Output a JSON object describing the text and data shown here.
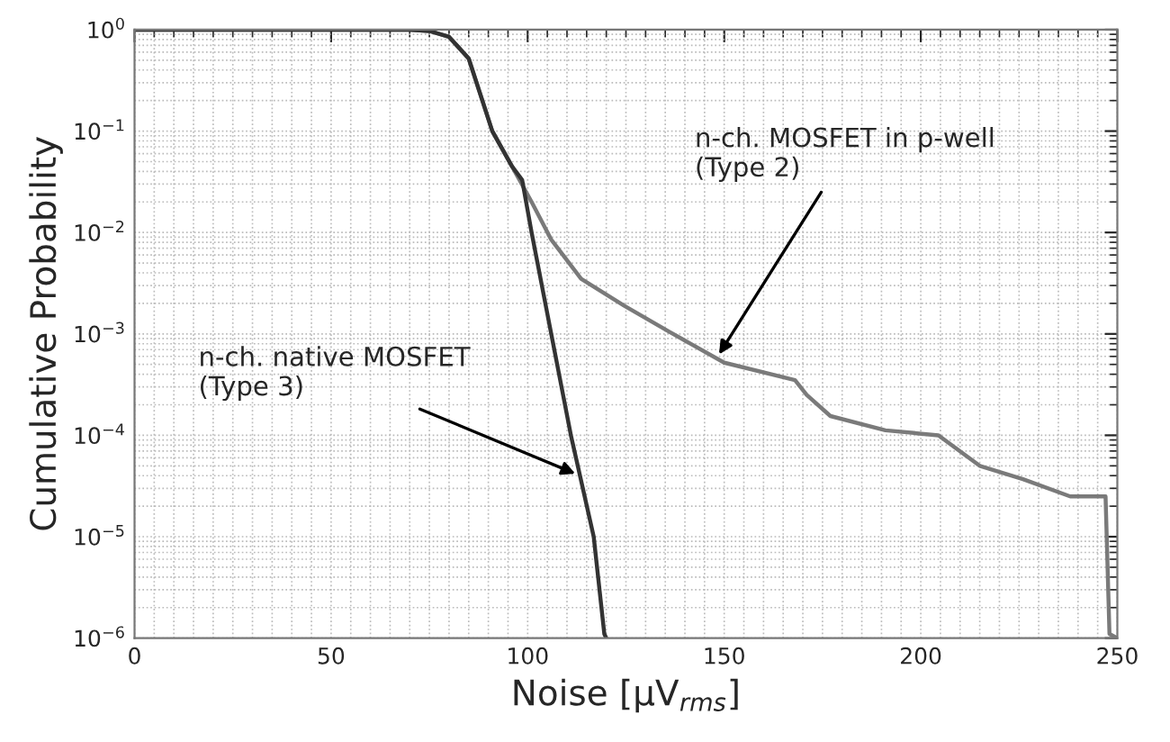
{
  "chart_data": {
    "type": "line",
    "xlabel": "Noise [μV$_{rms}$]",
    "ylabel": "Cumulative Probability",
    "log": "y",
    "grid": true,
    "xlim": [
      0,
      250
    ],
    "xticks": [
      0,
      50,
      100,
      150,
      200,
      250
    ],
    "ylim": [
      1e-06,
      1
    ],
    "yticks": [
      {
        "value": 1e-06,
        "label": "10$^{−6}$"
      },
      {
        "value": 1e-05,
        "label": "10$^{−5}$"
      },
      {
        "value": 0.0001,
        "label": "10$^{−4}$"
      },
      {
        "value": 0.001,
        "label": "10$^{−3}$"
      },
      {
        "value": 0.01,
        "label": "10$^{−2}$"
      },
      {
        "value": 0.1,
        "label": "10$^{−1}$"
      },
      {
        "value": 1,
        "label": "10$^{0}$"
      }
    ],
    "series": [
      {
        "color": "#7a7a7a",
        "x": [
          0,
          70,
          75,
          80,
          85,
          91,
          96,
          101,
          106,
          113.6,
          124.5,
          136,
          150,
          168,
          171,
          177,
          191,
          204.5,
          215,
          226,
          238,
          247,
          248,
          250
        ],
        "values": [
          1,
          1,
          0.97,
          0.85,
          0.52,
          0.1,
          0.045,
          0.02,
          0.0085,
          0.0035,
          0.0019,
          0.00105,
          0.00052,
          0.00035,
          0.00025,
          0.000155,
          0.000112,
          0.0001,
          5e-05,
          3.7e-05,
          2.5e-05,
          2.5e-05,
          1.1e-06,
          1e-06
        ]
      },
      {
        "color": "#333333",
        "x": [
          0,
          70,
          75,
          80,
          85,
          91,
          96,
          98.6,
          101,
          106,
          111,
          116.8,
          119.5,
          120
        ],
        "values": [
          1,
          1,
          0.97,
          0.85,
          0.52,
          0.1,
          0.045,
          0.033,
          0.01,
          0.001,
          0.0001,
          1e-05,
          1.1e-06,
          1e-06
        ]
      }
    ],
    "annotations": [
      {
        "text": "n-ch. MOSFET in p-well\n(Type 2)",
        "x": 148,
        "y": 0.00057
      },
      {
        "text": "n-ch. native MOSFET\n(Type 3)",
        "x": 113.3,
        "y": 4e-05
      }
    ]
  }
}
